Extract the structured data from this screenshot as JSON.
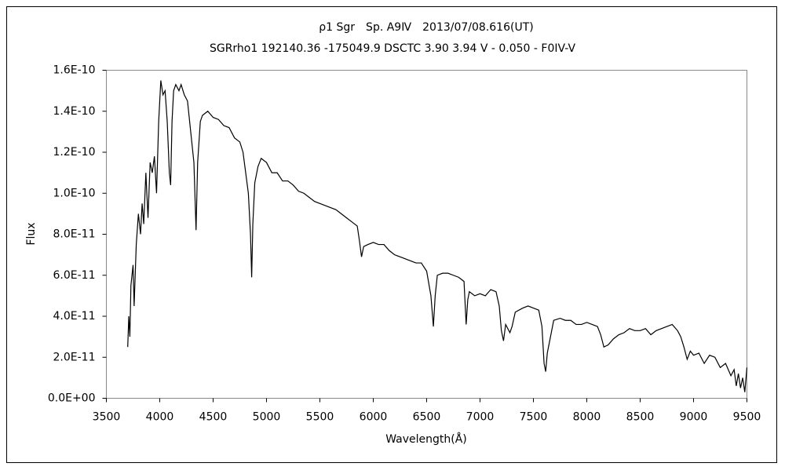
{
  "chart_data": {
    "type": "line",
    "title": "ρ1 Sgr　Sp. A9Ⅳ　2013/07/08.616(UT)",
    "subtitle": "SGRrho1 192140.36 -175049.9 DSCTC 3.90 3.94 V - 0.050 - F0IV-V",
    "x_label": "Wavelength(Å)",
    "y_label": "Flux",
    "color": "#000000",
    "xlim": [
      3500,
      9500
    ],
    "xticks": [
      3500,
      4000,
      4500,
      5000,
      5500,
      6000,
      6500,
      7000,
      7500,
      8000,
      8500,
      9000,
      9500
    ],
    "ylim": [
      0,
      1.6e-10
    ],
    "yticks": [
      {
        "value": 0,
        "label": "0.0E+00"
      },
      {
        "value": 2e-11,
        "label": "2.0E-11"
      },
      {
        "value": 4e-11,
        "label": "4.0E-11"
      },
      {
        "value": 6e-11,
        "label": "6.0E-11"
      },
      {
        "value": 8e-11,
        "label": "8.0E-11"
      },
      {
        "value": 1e-10,
        "label": "1.0E-10"
      },
      {
        "value": 1.2e-10,
        "label": "1.2E-10"
      },
      {
        "value": 1.4e-10,
        "label": "1.4E-10"
      },
      {
        "value": 1.6e-10,
        "label": "1.6E-10"
      }
    ],
    "x": [
      3700,
      3710,
      3720,
      3730,
      3750,
      3760,
      3780,
      3800,
      3820,
      3835,
      3850,
      3870,
      3890,
      3910,
      3930,
      3950,
      3970,
      3990,
      4010,
      4030,
      4050,
      4070,
      4090,
      4102,
      4115,
      4130,
      4150,
      4180,
      4200,
      4230,
      4260,
      4290,
      4320,
      4340,
      4355,
      4380,
      4400,
      4450,
      4500,
      4550,
      4600,
      4650,
      4700,
      4750,
      4780,
      4800,
      4830,
      4850,
      4861,
      4872,
      4890,
      4920,
      4950,
      5000,
      5050,
      5100,
      5150,
      5200,
      5250,
      5300,
      5350,
      5400,
      5450,
      5500,
      5550,
      5600,
      5650,
      5700,
      5750,
      5800,
      5850,
      5870,
      5890,
      5910,
      5950,
      6000,
      6050,
      6100,
      6150,
      6200,
      6250,
      6300,
      6350,
      6400,
      6450,
      6500,
      6540,
      6563,
      6580,
      6600,
      6650,
      6700,
      6750,
      6800,
      6850,
      6870,
      6885,
      6900,
      6950,
      7000,
      7050,
      7100,
      7150,
      7180,
      7200,
      7220,
      7240,
      7280,
      7300,
      7330,
      7400,
      7450,
      7500,
      7550,
      7580,
      7600,
      7615,
      7630,
      7660,
      7690,
      7750,
      7800,
      7850,
      7900,
      7950,
      8000,
      8050,
      8100,
      8130,
      8160,
      8200,
      8250,
      8300,
      8350,
      8400,
      8450,
      8500,
      8550,
      8600,
      8650,
      8700,
      8750,
      8800,
      8850,
      8880,
      8910,
      8940,
      8970,
      9000,
      9050,
      9100,
      9150,
      9200,
      9250,
      9300,
      9350,
      9380,
      9400,
      9420,
      9440,
      9460,
      9480,
      9500
    ],
    "values": [
      2.5e-11,
      4e-11,
      3e-11,
      5.5e-11,
      6.5e-11,
      4.5e-11,
      7.5e-11,
      9e-11,
      8e-11,
      9.5e-11,
      8.5e-11,
      1.1e-10,
      8.8e-11,
      1.15e-10,
      1.1e-10,
      1.18e-10,
      1e-10,
      1.35e-10,
      1.55e-10,
      1.48e-10,
      1.5e-10,
      1.35e-10,
      1.1e-10,
      1.04e-10,
      1.35e-10,
      1.5e-10,
      1.53e-10,
      1.5e-10,
      1.53e-10,
      1.48e-10,
      1.45e-10,
      1.3e-10,
      1.15e-10,
      8.2e-11,
      1.15e-10,
      1.35e-10,
      1.38e-10,
      1.4e-10,
      1.37e-10,
      1.36e-10,
      1.33e-10,
      1.32e-10,
      1.27e-10,
      1.25e-10,
      1.2e-10,
      1.12e-10,
      1e-10,
      8e-11,
      5.9e-11,
      8.5e-11,
      1.05e-10,
      1.13e-10,
      1.17e-10,
      1.15e-10,
      1.1e-10,
      1.1e-10,
      1.06e-10,
      1.06e-10,
      1.04e-10,
      1.01e-10,
      1e-10,
      9.8e-11,
      9.6e-11,
      9.5e-11,
      9.4e-11,
      9.3e-11,
      9.2e-11,
      9e-11,
      8.8e-11,
      8.6e-11,
      8.4e-11,
      7.7e-11,
      6.9e-11,
      7.4e-11,
      7.5e-11,
      7.6e-11,
      7.5e-11,
      7.5e-11,
      7.2e-11,
      7e-11,
      6.9e-11,
      6.8e-11,
      6.7e-11,
      6.6e-11,
      6.6e-11,
      6.2e-11,
      5e-11,
      3.5e-11,
      5e-11,
      6e-11,
      6.1e-11,
      6.1e-11,
      6e-11,
      5.9e-11,
      5.7e-11,
      3.6e-11,
      4.8e-11,
      5.2e-11,
      5e-11,
      5.1e-11,
      5e-11,
      5.3e-11,
      5.2e-11,
      4.5e-11,
      3.3e-11,
      2.8e-11,
      3.6e-11,
      3.2e-11,
      3.5e-11,
      4.2e-11,
      4.4e-11,
      4.5e-11,
      4.4e-11,
      4.3e-11,
      3.5e-11,
      1.7e-11,
      1.3e-11,
      2.2e-11,
      3e-11,
      3.8e-11,
      3.9e-11,
      3.8e-11,
      3.8e-11,
      3.6e-11,
      3.6e-11,
      3.7e-11,
      3.6e-11,
      3.5e-11,
      3.1e-11,
      2.5e-11,
      2.6e-11,
      2.9e-11,
      3.1e-11,
      3.2e-11,
      3.4e-11,
      3.3e-11,
      3.3e-11,
      3.4e-11,
      3.1e-11,
      3.3e-11,
      3.4e-11,
      3.5e-11,
      3.6e-11,
      3.3e-11,
      3e-11,
      2.5e-11,
      1.9e-11,
      2.3e-11,
      2.1e-11,
      2.2e-11,
      1.7e-11,
      2.1e-11,
      2e-11,
      1.5e-11,
      1.7e-11,
      1.1e-11,
      1.4e-11,
      6e-12,
      1.2e-11,
      5e-12,
      1e-11,
      3e-12,
      1.5e-11
    ]
  }
}
